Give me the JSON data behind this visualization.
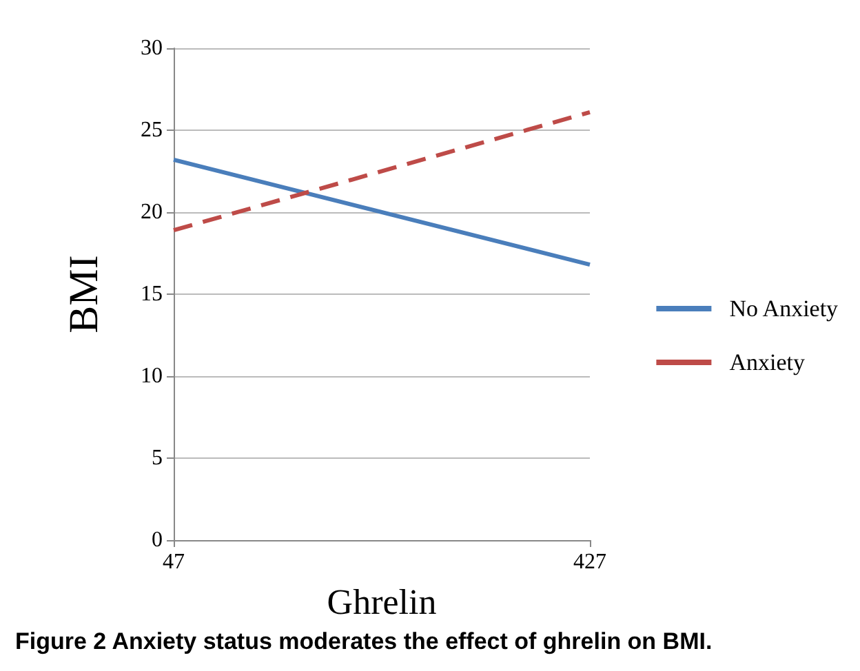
{
  "chart_data": {
    "type": "line",
    "title": "Figure 2 Anxiety status moderates the effect of ghrelin on BMI.",
    "xlabel": "Ghrelin",
    "ylabel": "BMI",
    "x": [
      47,
      427
    ],
    "xlim": [
      47,
      427
    ],
    "xticks": [
      47,
      427
    ],
    "ylim": [
      0,
      30
    ],
    "yticks": [
      0,
      5,
      10,
      15,
      20,
      25,
      30
    ],
    "grid": "y",
    "legend": "right",
    "marker": "none",
    "series": [
      {
        "name": "No Anxiety",
        "color": "#4a7ebb",
        "values": [
          23.2,
          16.8
        ],
        "line_style": "solid"
      },
      {
        "name": "Anxiety",
        "color": "#be4b48",
        "values": [
          18.9,
          26.1
        ],
        "line_style": "dashed"
      }
    ]
  }
}
